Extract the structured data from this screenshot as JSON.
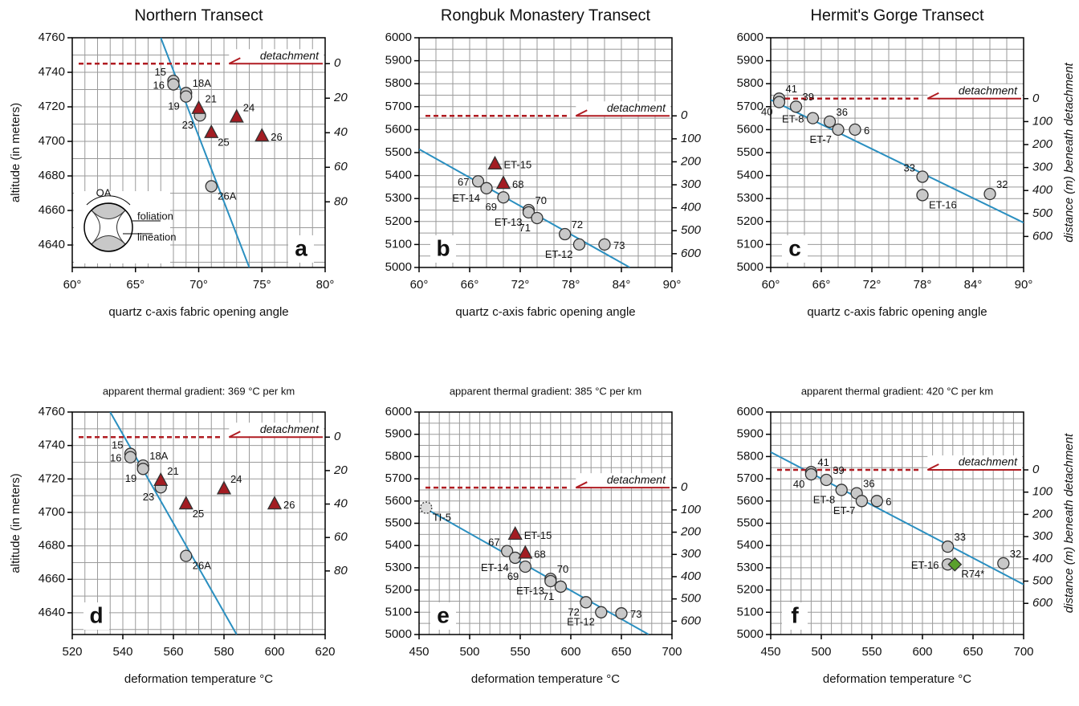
{
  "chart_data": [
    {
      "type": "scatter",
      "title": "Northern Transect",
      "xlabel": "quartz c-axis fabric opening angle",
      "ylabel": "altitude (in meters)",
      "panel": "a",
      "xlim": [
        60,
        80
      ],
      "xticks": [
        {
          "value": 60,
          "label": "60°"
        },
        {
          "value": 65,
          "label": "65°"
        },
        {
          "value": 70,
          "label": "70°"
        },
        {
          "value": 75,
          "label": "75°"
        },
        {
          "value": 80,
          "label": "80°"
        }
      ],
      "ylim": [
        4627,
        4760
      ],
      "yticks": [
        4640,
        4660,
        4680,
        4700,
        4720,
        4740,
        4760
      ],
      "y2lim": [
        118,
        -15
      ],
      "y2ticks": [
        0,
        20,
        40,
        60,
        80
      ],
      "grid": true,
      "grid_step": {
        "x": 1,
        "y": 10
      },
      "detachment": {
        "value": 4745,
        "label": "detachment"
      },
      "fit": {
        "x": [
          67,
          74
        ],
        "y": [
          4760,
          4627
        ],
        "color": "#2a8fc0"
      },
      "series": [
        {
          "marker": "circle",
          "color": "#c8c8c8",
          "x": [
            68,
            68,
            69,
            69,
            70.1,
            71
          ],
          "values": [
            4735,
            4733,
            4728,
            4726,
            4715,
            4674
          ],
          "labels": [
            "15",
            "16",
            "18A",
            "19",
            "23",
            "26A"
          ]
        },
        {
          "marker": "triangle",
          "color": "#a31c22",
          "x": [
            70,
            73,
            71,
            75
          ],
          "values": [
            4719,
            4714,
            4705,
            4703
          ],
          "labels": [
            "21",
            "24",
            "25",
            "26"
          ]
        }
      ],
      "inset": {
        "labels": [
          "OA",
          "foliation",
          "lineation"
        ]
      }
    },
    {
      "type": "scatter",
      "title": "Rongbuk Monastery Transect",
      "xlabel": "quartz c-axis fabric opening angle",
      "panel": "b",
      "xlim": [
        60,
        90
      ],
      "xticks": [
        {
          "value": 60,
          "label": "60°"
        },
        {
          "value": 66,
          "label": "66°"
        },
        {
          "value": 72,
          "label": "72°"
        },
        {
          "value": 78,
          "label": "78°"
        },
        {
          "value": 84,
          "label": "84°"
        },
        {
          "value": 90,
          "label": "90°"
        }
      ],
      "ylim": [
        5000,
        6000
      ],
      "yticks": [
        5000,
        5100,
        5200,
        5300,
        5400,
        5500,
        5600,
        5700,
        5800,
        5900,
        6000
      ],
      "y2lim": [
        660,
        -340
      ],
      "y2ticks": [
        0,
        100,
        200,
        300,
        400,
        500,
        600
      ],
      "grid": true,
      "grid_step": {
        "x": 2,
        "y": 50
      },
      "detachment": {
        "value": 5660,
        "label": "detachment"
      },
      "fit": {
        "x": [
          60,
          85
        ],
        "y": [
          5515,
          5000
        ],
        "color": "#2a8fc0"
      },
      "series": [
        {
          "marker": "circle",
          "color": "#c8c8c8",
          "x": [
            67,
            68,
            70,
            73,
            73,
            74,
            77.3,
            79,
            82
          ],
          "values": [
            5375,
            5345,
            5305,
            5250,
            5240,
            5215,
            5145,
            5100,
            5100
          ],
          "labels": [
            "67",
            "ET-14",
            "69",
            "70",
            "ET-13",
            "71",
            "72",
            "ET-12",
            "73"
          ]
        },
        {
          "marker": "triangle",
          "color": "#a31c22",
          "x": [
            69,
            70
          ],
          "values": [
            5450,
            5365
          ],
          "labels": [
            "ET-15",
            "68"
          ]
        }
      ]
    },
    {
      "type": "scatter",
      "title": "Hermit's Gorge Transect",
      "xlabel": "quartz c-axis fabric opening angle",
      "y2label": "distance (m) beneath detachment",
      "panel": "c",
      "xlim": [
        60,
        90
      ],
      "xticks": [
        {
          "value": 60,
          "label": "60°"
        },
        {
          "value": 66,
          "label": "66°"
        },
        {
          "value": 72,
          "label": "72°"
        },
        {
          "value": 78,
          "label": "78°"
        },
        {
          "value": 84,
          "label": "84°"
        },
        {
          "value": 90,
          "label": "90°"
        }
      ],
      "ylim": [
        5000,
        6000
      ],
      "yticks": [
        5000,
        5100,
        5200,
        5300,
        5400,
        5500,
        5600,
        5700,
        5800,
        5900,
        6000
      ],
      "y2lim": [
        735,
        -265
      ],
      "y2ticks": [
        0,
        100,
        200,
        300,
        400,
        500,
        600
      ],
      "grid": true,
      "grid_step": {
        "x": 2,
        "y": 50
      },
      "detachment": {
        "value": 5735,
        "label": "detachment"
      },
      "fit": {
        "x": [
          60,
          90
        ],
        "y": [
          5730,
          5195
        ],
        "color": "#2a8fc0"
      },
      "series": [
        {
          "marker": "circle",
          "color": "#c8c8c8",
          "x": [
            61,
            61,
            63,
            65,
            67,
            68,
            70,
            78,
            78,
            86
          ],
          "values": [
            5735,
            5720,
            5700,
            5650,
            5635,
            5600,
            5600,
            5395,
            5315,
            5320
          ],
          "labels": [
            "41",
            "40",
            "39",
            "ET-8",
            "36",
            "ET-7",
            "6",
            "33",
            "ET-16",
            "32"
          ]
        }
      ]
    },
    {
      "type": "scatter",
      "subtitle": "apparent thermal gradient:  369 °C per km",
      "xlabel": "deformation temperature °C",
      "ylabel": "altitude (in meters)",
      "panel": "d",
      "xlim": [
        520,
        620
      ],
      "xticks": [
        520,
        540,
        560,
        580,
        600,
        620
      ],
      "ylim": [
        4627,
        4760
      ],
      "yticks": [
        4640,
        4660,
        4680,
        4700,
        4720,
        4740,
        4760
      ],
      "y2lim": [
        118,
        -15
      ],
      "y2ticks": [
        0,
        20,
        40,
        60,
        80
      ],
      "grid": true,
      "grid_step": {
        "x": 5,
        "y": 10
      },
      "detachment": {
        "value": 4745,
        "label": "detachment"
      },
      "fit": {
        "x": [
          535,
          585
        ],
        "y": [
          4760,
          4627
        ],
        "color": "#2a8fc0"
      },
      "series": [
        {
          "marker": "circle",
          "color": "#c8c8c8",
          "x": [
            543,
            543,
            548,
            548,
            555,
            565
          ],
          "values": [
            4735,
            4733,
            4728,
            4726,
            4715,
            4674
          ],
          "labels": [
            "15",
            "16",
            "18A",
            "19",
            "23",
            "26A"
          ]
        },
        {
          "marker": "triangle",
          "color": "#a31c22",
          "x": [
            555,
            580,
            565,
            600
          ],
          "values": [
            4719,
            4714,
            4705,
            4705
          ],
          "labels": [
            "21",
            "24",
            "25",
            "26"
          ]
        }
      ]
    },
    {
      "type": "scatter",
      "subtitle": "apparent thermal gradient:  385 °C per km",
      "xlabel": "deformation temperature °C",
      "panel": "e",
      "xlim": [
        450,
        700
      ],
      "xticks": [
        450,
        500,
        550,
        600,
        650,
        700
      ],
      "ylim": [
        5000,
        6000
      ],
      "yticks": [
        5000,
        5100,
        5200,
        5300,
        5400,
        5500,
        5600,
        5700,
        5800,
        5900,
        6000
      ],
      "y2lim": [
        660,
        -340
      ],
      "y2ticks": [
        0,
        100,
        200,
        300,
        400,
        500,
        600
      ],
      "grid": true,
      "grid_step": {
        "x": 10,
        "y": 50
      },
      "detachment": {
        "value": 5660,
        "label": "detachment"
      },
      "fit": {
        "x": [
          455,
          677
        ],
        "y": [
          5570,
          5000
        ],
        "color": "#2a8fc0"
      },
      "series": [
        {
          "marker": "circle",
          "color": "#c8c8c8",
          "x": [
            537,
            545,
            555,
            580,
            580,
            590,
            615,
            630,
            650
          ],
          "values": [
            5375,
            5345,
            5305,
            5250,
            5240,
            5215,
            5145,
            5100,
            5095
          ],
          "labels": [
            "67",
            "ET-14",
            "69",
            "70",
            "ET-13",
            "71",
            "72",
            "ET-12",
            "73"
          ]
        },
        {
          "marker": "triangle",
          "color": "#a31c22",
          "x": [
            545,
            555
          ],
          "values": [
            5450,
            5365
          ],
          "labels": [
            "ET-15",
            "68"
          ]
        },
        {
          "marker": "dashed-circle",
          "color": "#dcdcdc",
          "x": [
            457
          ],
          "values": [
            5570
          ],
          "labels": [
            "TI-5"
          ]
        }
      ]
    },
    {
      "type": "scatter",
      "subtitle": "apparent thermal gradient:  420 °C per km",
      "xlabel": "deformation temperature °C",
      "y2label": "distance (m) beneath detachment",
      "panel": "f",
      "xlim": [
        450,
        700
      ],
      "xticks": [
        450,
        500,
        550,
        600,
        650,
        700
      ],
      "ylim": [
        5000,
        6000
      ],
      "yticks": [
        5000,
        5100,
        5200,
        5300,
        5400,
        5500,
        5600,
        5700,
        5800,
        5900,
        6000
      ],
      "y2lim": [
        740,
        -260
      ],
      "y2ticks": [
        0,
        100,
        200,
        300,
        400,
        500,
        600
      ],
      "grid": true,
      "grid_step": {
        "x": 10,
        "y": 50
      },
      "detachment": {
        "value": 5740,
        "label": "detachment"
      },
      "fit": {
        "x": [
          450,
          700
        ],
        "y": [
          5820,
          5225
        ],
        "color": "#2a8fc0"
      },
      "series": [
        {
          "marker": "circle",
          "color": "#c8c8c8",
          "x": [
            490,
            490,
            505,
            520,
            535,
            540,
            555,
            625,
            625,
            680
          ],
          "values": [
            5730,
            5720,
            5695,
            5650,
            5635,
            5600,
            5600,
            5395,
            5315,
            5320
          ],
          "labels": [
            "41",
            "40",
            "39",
            "ET-8",
            "36",
            "ET-7",
            "6",
            "33",
            "ET-16",
            "32"
          ]
        },
        {
          "marker": "diamond",
          "color": "#5aa02c",
          "x": [
            632
          ],
          "values": [
            5315
          ],
          "labels": [
            "R74*"
          ]
        }
      ]
    }
  ]
}
